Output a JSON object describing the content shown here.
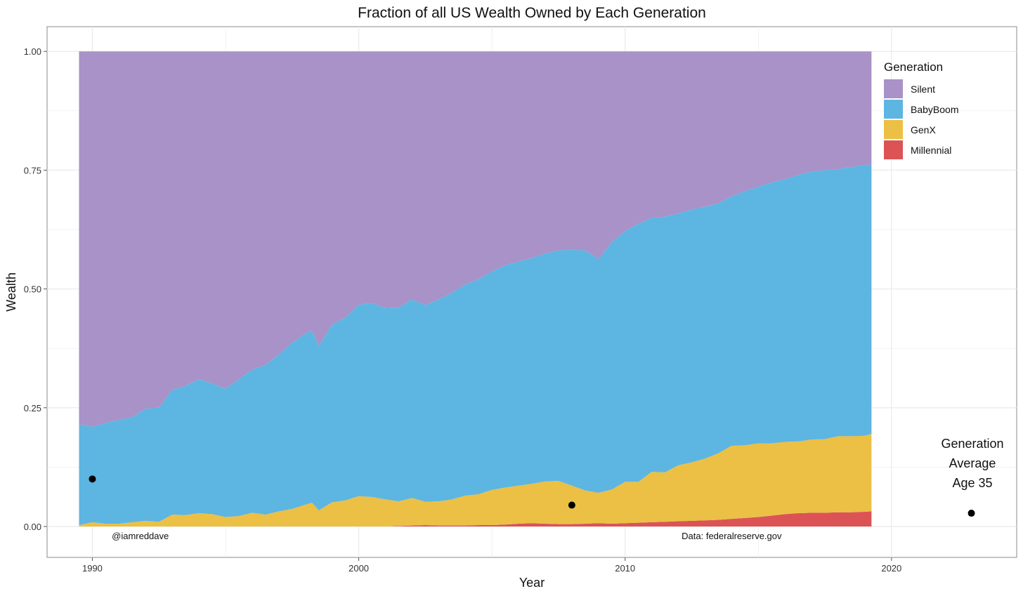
{
  "chart_data": {
    "type": "area",
    "stacked": true,
    "normalized": true,
    "title": "Fraction of all US Wealth Owned by Each Generation",
    "xlabel": "Year",
    "ylabel": "Wealth",
    "xlim": [
      1988.3,
      2024.7
    ],
    "ylim": [
      -0.065,
      1.052
    ],
    "x_ticks": [
      1990,
      2000,
      2010,
      2020
    ],
    "x_tick_labels": [
      "1990",
      "2000",
      "2010",
      "2020"
    ],
    "y_ticks": [
      0,
      0.25,
      0.5,
      0.75,
      1.0
    ],
    "y_tick_labels": [
      "0.00",
      "0.25",
      "0.50",
      "0.75",
      "1.00"
    ],
    "grid": true,
    "legend": {
      "title": "Generation",
      "position": "right",
      "entries": [
        "Silent",
        "BabyBoom",
        "GenX",
        "Millennial"
      ]
    },
    "colors": {
      "Silent": "#a892c7",
      "BabyBoom": "#5db5e2",
      "GenX": "#ebc045",
      "Millennial": "#dc5356"
    },
    "stack_order_bottom_to_top": [
      "Millennial",
      "GenX",
      "BabyBoom",
      "Silent"
    ],
    "x": [
      1989.5,
      1990.0,
      1990.5,
      1991.0,
      1991.5,
      1992.0,
      1992.5,
      1993.0,
      1993.5,
      1994.0,
      1994.5,
      1995.0,
      1995.5,
      1996.0,
      1996.5,
      1997.0,
      1997.5,
      1998.0,
      1998.25,
      1998.5,
      1999.0,
      1999.5,
      2000.0,
      2000.5,
      2001.0,
      2001.5,
      2002.0,
      2002.5,
      2003.0,
      2003.5,
      2004.0,
      2004.5,
      2005.0,
      2005.5,
      2006.0,
      2006.5,
      2007.0,
      2007.5,
      2008.0,
      2008.5,
      2009.0,
      2009.5,
      2010.0,
      2010.5,
      2011.0,
      2011.5,
      2012.0,
      2012.5,
      2013.0,
      2013.5,
      2014.0,
      2014.5,
      2015.0,
      2015.5,
      2016.0,
      2016.5,
      2017.0,
      2017.5,
      2018.0,
      2018.5,
      2019.0,
      2019.25
    ],
    "series": [
      {
        "name": "Millennial",
        "values": [
          0,
          0,
          0,
          0,
          0,
          0,
          0,
          0,
          0,
          0,
          0,
          0,
          0,
          0,
          0,
          0,
          0,
          0,
          0,
          0,
          0,
          0,
          0,
          0,
          0,
          0.001,
          0.002,
          0.003,
          0.002,
          0.002,
          0.002,
          0.003,
          0.003,
          0.004,
          0.006,
          0.007,
          0.006,
          0.005,
          0.005,
          0.006,
          0.007,
          0.006,
          0.007,
          0.008,
          0.009,
          0.01,
          0.011,
          0.012,
          0.013,
          0.014,
          0.016,
          0.018,
          0.02,
          0.023,
          0.026,
          0.028,
          0.029,
          0.029,
          0.03,
          0.03,
          0.031,
          0.032
        ]
      },
      {
        "name": "GenX",
        "values": [
          0.003,
          0.009,
          0.006,
          0.006,
          0.009,
          0.012,
          0.01,
          0.025,
          0.024,
          0.028,
          0.026,
          0.02,
          0.022,
          0.029,
          0.025,
          0.032,
          0.037,
          0.046,
          0.05,
          0.034,
          0.051,
          0.055,
          0.064,
          0.062,
          0.057,
          0.052,
          0.058,
          0.049,
          0.051,
          0.055,
          0.063,
          0.065,
          0.074,
          0.078,
          0.08,
          0.083,
          0.089,
          0.091,
          0.081,
          0.07,
          0.064,
          0.072,
          0.087,
          0.086,
          0.106,
          0.104,
          0.118,
          0.123,
          0.13,
          0.14,
          0.154,
          0.153,
          0.155,
          0.152,
          0.152,
          0.151,
          0.154,
          0.155,
          0.16,
          0.16,
          0.16,
          0.163
        ]
      },
      {
        "name": "BabyBoom",
        "values": [
          0.212,
          0.201,
          0.212,
          0.219,
          0.221,
          0.236,
          0.24,
          0.263,
          0.272,
          0.282,
          0.275,
          0.27,
          0.288,
          0.301,
          0.315,
          0.33,
          0.35,
          0.36,
          0.362,
          0.346,
          0.374,
          0.385,
          0.403,
          0.408,
          0.403,
          0.408,
          0.418,
          0.414,
          0.425,
          0.435,
          0.445,
          0.452,
          0.46,
          0.468,
          0.472,
          0.475,
          0.48,
          0.485,
          0.497,
          0.505,
          0.492,
          0.52,
          0.528,
          0.543,
          0.535,
          0.538,
          0.53,
          0.532,
          0.53,
          0.526,
          0.525,
          0.535,
          0.54,
          0.549,
          0.553,
          0.561,
          0.564,
          0.566,
          0.562,
          0.567,
          0.569,
          0.567
        ]
      },
      {
        "name": "Silent",
        "values": [
          0.785,
          0.79,
          0.782,
          0.775,
          0.77,
          0.752,
          0.75,
          0.712,
          0.704,
          0.69,
          0.699,
          0.71,
          0.69,
          0.67,
          0.66,
          0.638,
          0.613,
          0.594,
          0.588,
          0.62,
          0.575,
          0.56,
          0.533,
          0.53,
          0.54,
          0.539,
          0.522,
          0.534,
          0.522,
          0.508,
          0.49,
          0.48,
          0.463,
          0.45,
          0.442,
          0.435,
          0.425,
          0.419,
          0.417,
          0.419,
          0.437,
          0.402,
          0.378,
          0.363,
          0.35,
          0.348,
          0.341,
          0.333,
          0.327,
          0.32,
          0.305,
          0.294,
          0.285,
          0.276,
          0.269,
          0.26,
          0.253,
          0.25,
          0.248,
          0.243,
          0.24,
          0.238
        ]
      }
    ],
    "points": [
      {
        "x": 1990.0,
        "y": 0.1
      },
      {
        "x": 2008.0,
        "y": 0.045
      },
      {
        "x": 2023.0,
        "y": 0.028
      }
    ],
    "annotations": [
      {
        "text": "@iamreddave",
        "x": 1991.8,
        "y": -0.021
      },
      {
        "text": "Data: federalreserve.gov",
        "x": 2014.0,
        "y": -0.021
      }
    ],
    "side_note": [
      "Generation",
      "Average",
      "Age 35"
    ]
  }
}
